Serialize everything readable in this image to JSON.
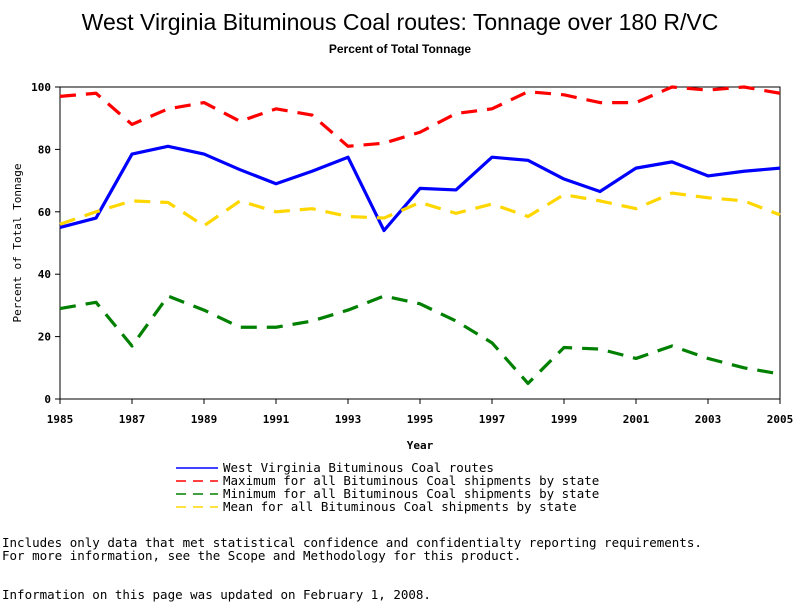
{
  "notes": {
    "line1": "Includes only data that met statistical confidence and confidentialty reporting requirements.",
    "line2": "For more information, see the Scope and Methodology for this product.",
    "updated": "Information on this page was updated on February 1, 2008."
  },
  "chart_data": {
    "type": "line",
    "title": "West Virginia Bituminous Coal routes: Tonnage over 180 R/VC",
    "subtitle": "Percent of Total Tonnage",
    "xlabel": "Year",
    "ylabel": "Percent of Total Tonnage",
    "xlim": [
      1985,
      2005
    ],
    "ylim": [
      0,
      100
    ],
    "x_ticks": [
      "1985",
      "1987",
      "1989",
      "1991",
      "1993",
      "1995",
      "1997",
      "1999",
      "2001",
      "2003",
      "2005"
    ],
    "y_ticks": [
      "0",
      "20",
      "40",
      "60",
      "80",
      "100"
    ],
    "grid": false,
    "legend_position": "bottom",
    "x": [
      1985,
      1986,
      1987,
      1988,
      1989,
      1990,
      1991,
      1992,
      1993,
      1994,
      1995,
      1996,
      1997,
      1998,
      1999,
      2000,
      2001,
      2002,
      2003,
      2004,
      2005
    ],
    "series": [
      {
        "name": "West Virginia Bituminous Coal routes",
        "color": "#0000ff",
        "style": "solid",
        "values": [
          55,
          58,
          78.5,
          81,
          78.5,
          73.5,
          69,
          73,
          77.5,
          54,
          67.5,
          67,
          77.5,
          76.5,
          70.5,
          66.5,
          74,
          76,
          71.5,
          73,
          74
        ]
      },
      {
        "name": "Maximum for all Bituminous Coal shipments by state",
        "color": "#ff0000",
        "style": "dashed",
        "values": [
          97,
          98,
          88,
          93,
          95,
          89,
          93,
          91,
          81,
          82,
          85.5,
          91.5,
          93,
          98.5,
          97.5,
          95,
          95,
          100,
          99,
          100,
          98
        ]
      },
      {
        "name": "Minimum for all Bituminous Coal shipments by state",
        "color": "#008000",
        "style": "dashed",
        "values": [
          29,
          31,
          17,
          33,
          28.5,
          23,
          23,
          25,
          28.5,
          33,
          30.5,
          25,
          18,
          5,
          16.5,
          16,
          13,
          17,
          13,
          10,
          8
        ]
      },
      {
        "name": "Mean for all Bituminous Coal shipments by state",
        "color": "#ffd700",
        "style": "dashed",
        "values": [
          56,
          60,
          63.5,
          63,
          55.5,
          63.5,
          60,
          61,
          58.5,
          58,
          63,
          59.5,
          62.5,
          58.5,
          65.5,
          63.5,
          61,
          66,
          64.5,
          63.5,
          59
        ]
      }
    ]
  }
}
